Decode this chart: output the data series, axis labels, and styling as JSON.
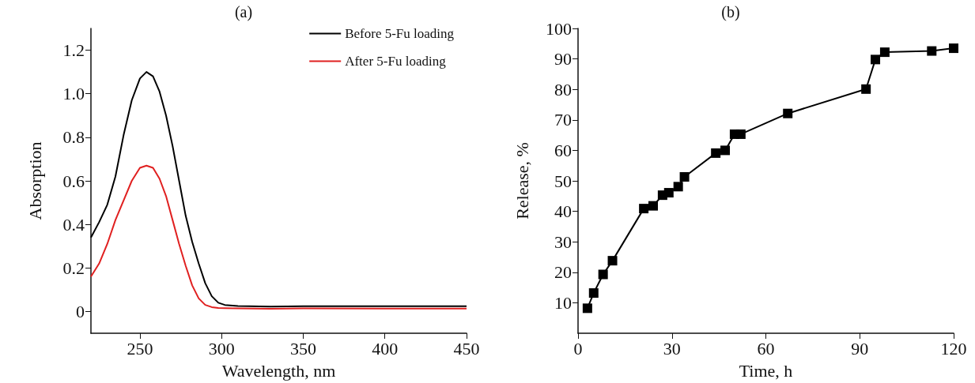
{
  "chart_data": [
    {
      "type": "line",
      "title": "(a)",
      "xlabel": "Wavelength, nm",
      "ylabel": "Absorption",
      "xlim": [
        220,
        450
      ],
      "xticks": [
        250,
        300,
        350,
        400,
        450
      ],
      "ylim": [
        -0.1,
        1.3
      ],
      "yticks": [
        0,
        0.2,
        0.4,
        0.6,
        0.8,
        {
          "value": 1,
          "label": "1.0"
        },
        1.2
      ],
      "grid": false,
      "legend": "top right",
      "marker": "none",
      "line_style": "solid",
      "x": [
        220,
        225,
        230,
        235,
        240,
        245,
        250,
        254,
        258,
        262,
        266,
        270,
        274,
        278,
        282,
        286,
        290,
        294,
        298,
        302,
        310,
        330,
        350,
        400,
        450
      ],
      "series": [
        {
          "name": "Before 5-Fu loading",
          "color": "#000000",
          "values": [
            0.34,
            0.41,
            0.49,
            0.62,
            0.81,
            0.97,
            1.07,
            1.1,
            1.08,
            1.01,
            0.9,
            0.76,
            0.6,
            0.44,
            0.32,
            0.22,
            0.13,
            0.07,
            0.04,
            0.03,
            0.025,
            0.022,
            0.024,
            0.024,
            0.024
          ]
        },
        {
          "name": "After 5-Fu loading",
          "color": "#e02020",
          "values": [
            0.16,
            0.22,
            0.31,
            0.42,
            0.51,
            0.6,
            0.66,
            0.67,
            0.66,
            0.61,
            0.53,
            0.42,
            0.31,
            0.21,
            0.12,
            0.06,
            0.03,
            0.02,
            0.016,
            0.015,
            0.014,
            0.012,
            0.014,
            0.013,
            0.013
          ]
        }
      ]
    },
    {
      "type": "line",
      "title": "(b)",
      "xlabel": "Time, h",
      "ylabel": "Release, %",
      "xlim": [
        0,
        120
      ],
      "xticks": [
        0,
        30,
        60,
        90,
        120
      ],
      "ylim": [
        0,
        100
      ],
      "yticks": [
        10,
        20,
        30,
        40,
        50,
        60,
        70,
        80,
        90,
        100
      ],
      "grid": false,
      "legend": false,
      "marker": "square",
      "line_style": "solid",
      "x": [
        3,
        5,
        8,
        11,
        21,
        24,
        27,
        29,
        32,
        34,
        44,
        47,
        50,
        52,
        67,
        92,
        95,
        98,
        113,
        120
      ],
      "series": [
        {
          "color": "#000000",
          "values": [
            8.2,
            13.2,
            19.3,
            23.8,
            40.9,
            41.8,
            45.3,
            46.1,
            48.1,
            51.3,
            59.1,
            60.0,
            65.3,
            65.3,
            72.1,
            80.1,
            89.8,
            92.2,
            92.6,
            93.5
          ]
        }
      ]
    }
  ]
}
